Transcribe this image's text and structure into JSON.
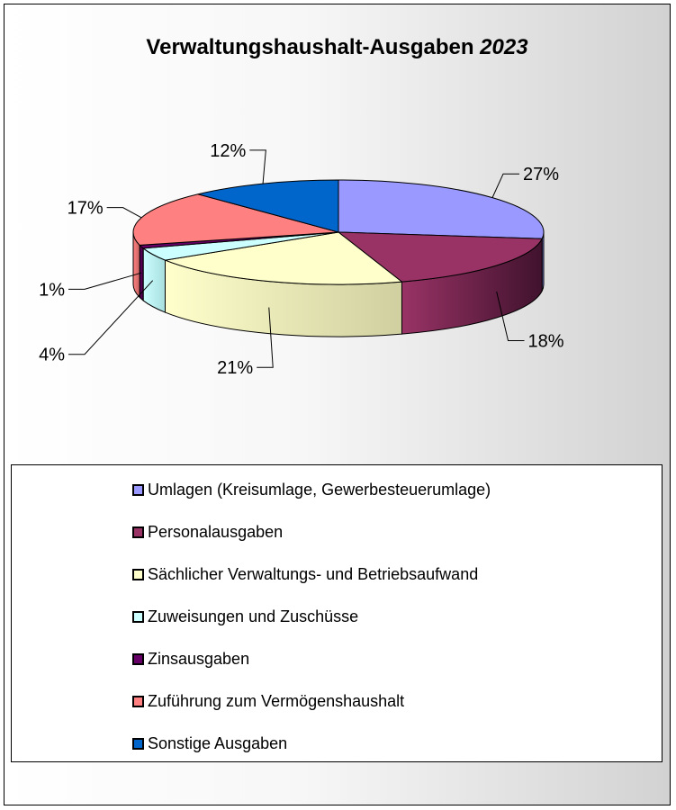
{
  "chart_data": {
    "type": "pie",
    "title": "Verwaltungshaushalt-Ausgaben",
    "title_year": "2023",
    "legend_position": "bottom",
    "slices": [
      {
        "label": "Umlagen (Kreisumlage, Gewerbesteuerumlage)",
        "value": 27,
        "value_label": "27%",
        "color": "#9999ff",
        "side_color": "#6f6fc2"
      },
      {
        "label": "Personalausgaben",
        "value": 18,
        "value_label": "18%",
        "color": "#993366",
        "side_color": "#40122d"
      },
      {
        "label": "Sächlicher Verwaltungs- und Betriebsaufwand",
        "value": 21,
        "value_label": "21%",
        "color": "#ffffcc",
        "side_color": "#cfcfa0"
      },
      {
        "label": "Zuweisungen und Zuschüsse",
        "value": 4,
        "value_label": "4%",
        "color": "#ccffff",
        "side_color": "#a8dede"
      },
      {
        "label": "Zinsausgaben",
        "value": 1,
        "value_label": "1%",
        "color": "#660066",
        "side_color": "#3d003d"
      },
      {
        "label": "Zuführung zum Vermögenshaushalt",
        "value": 17,
        "value_label": "17%",
        "color": "#ff8080",
        "side_color": "#c96464"
      },
      {
        "label": "Sonstige Ausgaben",
        "value": 12,
        "value_label": "12%",
        "color": "#0066cc",
        "side_color": "#004c99"
      }
    ]
  }
}
